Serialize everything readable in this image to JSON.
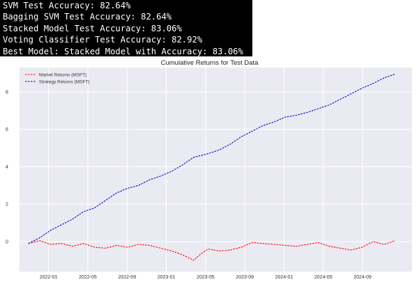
{
  "console": {
    "lines": [
      "SVM Test Accuracy: 82.64%",
      "Bagging SVM Test Accuracy: 82.64%",
      "Stacked Model Test Accuracy: 83.06%",
      "Voting Classifier Test Accuracy: 82.92%",
      "Best Model: Stacked Model with Accuracy: 83.06%"
    ]
  },
  "chart_data": {
    "type": "line",
    "title": "Cumulative Returns for Test Data",
    "xlabel": "",
    "ylabel": "",
    "grid": true,
    "legend_placement": "top-left",
    "x_ticks": [
      "2022-01",
      "2022-05",
      "2022-09",
      "2023-01",
      "2023-05",
      "2023-09",
      "2024-01",
      "2024-05",
      "2024-09"
    ],
    "y_ticks": [
      "0",
      "2",
      "4",
      "6",
      "8"
    ],
    "ylim": [
      -1.6,
      9.3
    ],
    "xlim": [
      "2021-10",
      "2024-10"
    ],
    "series": [
      {
        "name": "Market Returns (MSFT)",
        "color": "#ff0000",
        "x": [
          0.0,
          0.03,
          0.06,
          0.09,
          0.12,
          0.15,
          0.18,
          0.21,
          0.24,
          0.27,
          0.3,
          0.33,
          0.36,
          0.39,
          0.42,
          0.45,
          0.47,
          0.49,
          0.52,
          0.55,
          0.58,
          0.61,
          0.64,
          0.67,
          0.7,
          0.73,
          0.76,
          0.79,
          0.82,
          0.85,
          0.88,
          0.91,
          0.94,
          0.97,
          1.0
        ],
        "values": [
          -0.1,
          0.05,
          -0.15,
          -0.1,
          -0.25,
          -0.1,
          -0.3,
          -0.35,
          -0.2,
          -0.3,
          -0.15,
          -0.2,
          -0.35,
          -0.5,
          -0.7,
          -1.0,
          -0.65,
          -0.4,
          -0.5,
          -0.45,
          -0.3,
          -0.05,
          -0.1,
          -0.15,
          -0.2,
          -0.25,
          -0.15,
          -0.05,
          -0.25,
          -0.35,
          -0.45,
          -0.3,
          0.0,
          -0.15,
          0.05
        ]
      },
      {
        "name": "Strategy Returns (MSFT)",
        "color": "#0000cc",
        "x": [
          0.0,
          0.03,
          0.06,
          0.09,
          0.12,
          0.15,
          0.18,
          0.21,
          0.24,
          0.27,
          0.3,
          0.33,
          0.36,
          0.39,
          0.42,
          0.45,
          0.47,
          0.49,
          0.52,
          0.55,
          0.58,
          0.61,
          0.64,
          0.67,
          0.7,
          0.73,
          0.76,
          0.79,
          0.82,
          0.85,
          0.88,
          0.91,
          0.94,
          0.97,
          1.0
        ],
        "values": [
          -0.1,
          0.2,
          0.6,
          0.9,
          1.2,
          1.6,
          1.8,
          2.2,
          2.6,
          2.85,
          3.0,
          3.3,
          3.5,
          3.75,
          4.1,
          4.5,
          4.6,
          4.7,
          4.9,
          5.2,
          5.6,
          5.9,
          6.2,
          6.4,
          6.65,
          6.75,
          6.9,
          7.1,
          7.3,
          7.6,
          7.9,
          8.2,
          8.45,
          8.75,
          8.95
        ]
      }
    ]
  }
}
